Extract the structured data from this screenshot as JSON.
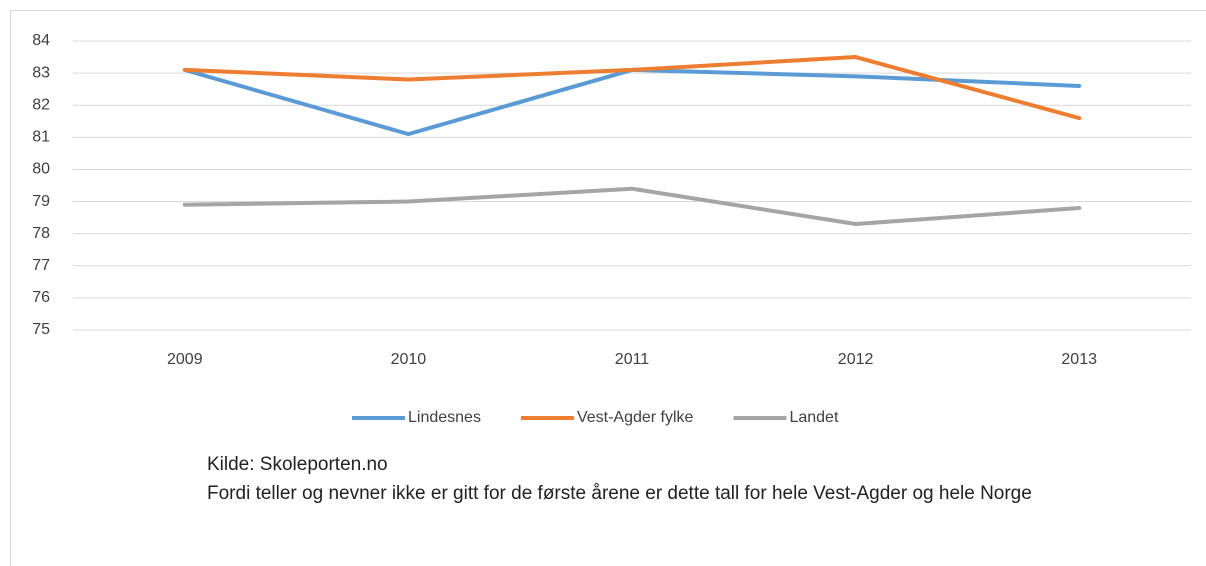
{
  "chart_data": {
    "type": "line",
    "categories": [
      "2009",
      "2010",
      "2011",
      "2012",
      "2013"
    ],
    "series": [
      {
        "name": "Lindesnes",
        "color": "#5b9bd5",
        "values": [
          83.1,
          81.1,
          83.1,
          82.9,
          82.6
        ]
      },
      {
        "name": "Vest-Agder fylke",
        "color": "#ed7d31",
        "values": [
          83.1,
          82.8,
          83.1,
          83.5,
          81.6
        ]
      },
      {
        "name": "Landet",
        "color": "#a5a5a5",
        "values": [
          78.9,
          79.0,
          79.4,
          78.3,
          78.8
        ]
      }
    ],
    "ylim": [
      75,
      84
    ],
    "yticks": [
      75,
      76,
      77,
      78,
      79,
      80,
      81,
      82,
      83,
      84
    ],
    "grid": true,
    "legend": "bottom",
    "notes": [
      "Kilde: Skoleporten.no",
      "Fordi teller og nevner ikke er gitt for de første årene er dette tall for hele Vest-Agder og hele Norge"
    ]
  }
}
